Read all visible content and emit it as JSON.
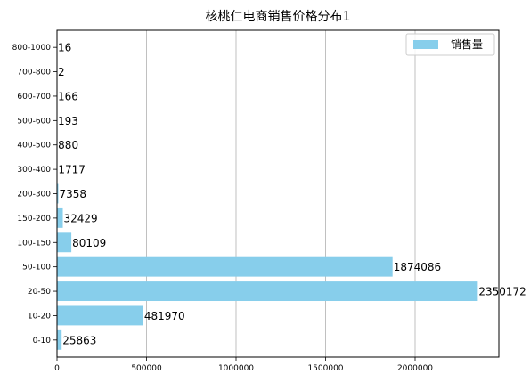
{
  "chart_data": {
    "type": "bar",
    "orientation": "horizontal",
    "title": "核桃仁电商销售价格分布1",
    "xlabel": "",
    "ylabel": "",
    "categories": [
      "0-10",
      "10-20",
      "20-50",
      "50-100",
      "100-150",
      "150-200",
      "200-300",
      "300-400",
      "400-500",
      "500-600",
      "600-700",
      "700-800",
      "800-1000"
    ],
    "series": [
      {
        "name": "销售量",
        "values": [
          25863,
          481970,
          2350172,
          1874086,
          80109,
          32429,
          7358,
          1717,
          880,
          193,
          166,
          2,
          16
        ]
      }
    ],
    "data_labels": [
      "25863",
      "481970",
      "2350172",
      "1874086",
      "80109",
      "32429",
      "7358",
      "1717",
      "880",
      "193",
      "166",
      "2",
      "16"
    ],
    "xticks": [
      0,
      500000,
      1000000,
      1500000,
      2000000
    ],
    "xtick_labels": [
      "0",
      "500000",
      "1000000",
      "1500000",
      "2000000"
    ],
    "xlim": [
      0,
      2467680
    ],
    "grid": "x",
    "legend_position": "top-right",
    "bar_color": "#87ceeb",
    "grid_color": "#b0b0b0"
  }
}
